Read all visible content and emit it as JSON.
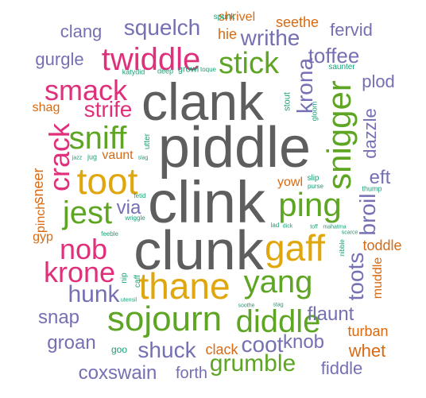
{
  "palette": {
    "dark_gray": "#5e5e5e",
    "gold": "#e0a60e",
    "green": "#5da523",
    "magenta": "#e0307b",
    "purple": "#7570b3",
    "orange": "#d96a12",
    "teal": "#1b9e77"
  },
  "words": [
    {
      "text": "clank",
      "color": "dark_gray"
    },
    {
      "text": "piddle",
      "color": "dark_gray"
    },
    {
      "text": "clink",
      "color": "dark_gray"
    },
    {
      "text": "clunk",
      "color": "dark_gray"
    },
    {
      "text": "toot",
      "color": "gold"
    },
    {
      "text": "thane",
      "color": "gold"
    },
    {
      "text": "gaff",
      "color": "gold"
    },
    {
      "text": "twiddle",
      "color": "magenta"
    },
    {
      "text": "smack",
      "color": "magenta"
    },
    {
      "text": "crack",
      "color": "magenta"
    },
    {
      "text": "nob",
      "color": "magenta"
    },
    {
      "text": "krone",
      "color": "magenta"
    },
    {
      "text": "strife",
      "color": "magenta"
    },
    {
      "text": "sniff",
      "color": "green"
    },
    {
      "text": "jest",
      "color": "green"
    },
    {
      "text": "stick",
      "color": "green"
    },
    {
      "text": "snigger",
      "color": "green"
    },
    {
      "text": "ping",
      "color": "green"
    },
    {
      "text": "yang",
      "color": "green"
    },
    {
      "text": "sojourn",
      "color": "green"
    },
    {
      "text": "diddle",
      "color": "green"
    },
    {
      "text": "grumble",
      "color": "green"
    },
    {
      "text": "squelch",
      "color": "purple"
    },
    {
      "text": "writhe",
      "color": "purple"
    },
    {
      "text": "krona",
      "color": "purple"
    },
    {
      "text": "toffee",
      "color": "purple"
    },
    {
      "text": "clang",
      "color": "purple"
    },
    {
      "text": "gurgle",
      "color": "purple"
    },
    {
      "text": "fervid",
      "color": "purple"
    },
    {
      "text": "plod",
      "color": "purple"
    },
    {
      "text": "dazzle",
      "color": "purple"
    },
    {
      "text": "eft",
      "color": "purple"
    },
    {
      "text": "broil",
      "color": "purple"
    },
    {
      "text": "toots",
      "color": "purple"
    },
    {
      "text": "hunk",
      "color": "purple"
    },
    {
      "text": "via",
      "color": "purple"
    },
    {
      "text": "snap",
      "color": "purple"
    },
    {
      "text": "groan",
      "color": "purple"
    },
    {
      "text": "shuck",
      "color": "purple"
    },
    {
      "text": "coot",
      "color": "purple"
    },
    {
      "text": "knob",
      "color": "purple"
    },
    {
      "text": "flaunt",
      "color": "purple"
    },
    {
      "text": "coxswain",
      "color": "purple"
    },
    {
      "text": "forth",
      "color": "purple"
    },
    {
      "text": "fiddle",
      "color": "purple"
    },
    {
      "text": "shrivel",
      "color": "orange"
    },
    {
      "text": "seethe",
      "color": "orange"
    },
    {
      "text": "hie",
      "color": "orange"
    },
    {
      "text": "shag",
      "color": "orange"
    },
    {
      "text": "vaunt",
      "color": "orange"
    },
    {
      "text": "sneer",
      "color": "orange"
    },
    {
      "text": "gyp",
      "color": "orange"
    },
    {
      "text": "pinch",
      "color": "orange"
    },
    {
      "text": "yowl",
      "color": "orange"
    },
    {
      "text": "toddle",
      "color": "orange"
    },
    {
      "text": "muddle",
      "color": "orange"
    },
    {
      "text": "turban",
      "color": "orange"
    },
    {
      "text": "whet",
      "color": "orange"
    },
    {
      "text": "clack",
      "color": "orange"
    },
    {
      "text": "spunk",
      "color": "teal"
    },
    {
      "text": "katydid",
      "color": "teal"
    },
    {
      "text": "deep",
      "color": "teal"
    },
    {
      "text": "growl",
      "color": "teal"
    },
    {
      "text": "toque",
      "color": "teal"
    },
    {
      "text": "saunter",
      "color": "teal"
    },
    {
      "text": "gloom",
      "color": "teal"
    },
    {
      "text": "stout",
      "color": "teal"
    },
    {
      "text": "utter",
      "color": "teal"
    },
    {
      "text": "jazz",
      "color": "teal"
    },
    {
      "text": "jug",
      "color": "teal"
    },
    {
      "text": "slag",
      "color": "teal"
    },
    {
      "text": "fetid",
      "color": "teal"
    },
    {
      "text": "wriggle",
      "color": "teal"
    },
    {
      "text": "feeble",
      "color": "teal"
    },
    {
      "text": "slip",
      "color": "teal"
    },
    {
      "text": "purse",
      "color": "teal"
    },
    {
      "text": "thump",
      "color": "teal"
    },
    {
      "text": "lad",
      "color": "teal"
    },
    {
      "text": "dick",
      "color": "teal"
    },
    {
      "text": "toff",
      "color": "teal"
    },
    {
      "text": "mahatma",
      "color": "teal"
    },
    {
      "text": "scarce",
      "color": "teal"
    },
    {
      "text": "nibble",
      "color": "teal"
    },
    {
      "text": "nip",
      "color": "teal"
    },
    {
      "text": "caff",
      "color": "teal"
    },
    {
      "text": "utensil",
      "color": "teal"
    },
    {
      "text": "soothe",
      "color": "teal"
    },
    {
      "text": "stag",
      "color": "teal"
    },
    {
      "text": "goo",
      "color": "teal"
    }
  ]
}
